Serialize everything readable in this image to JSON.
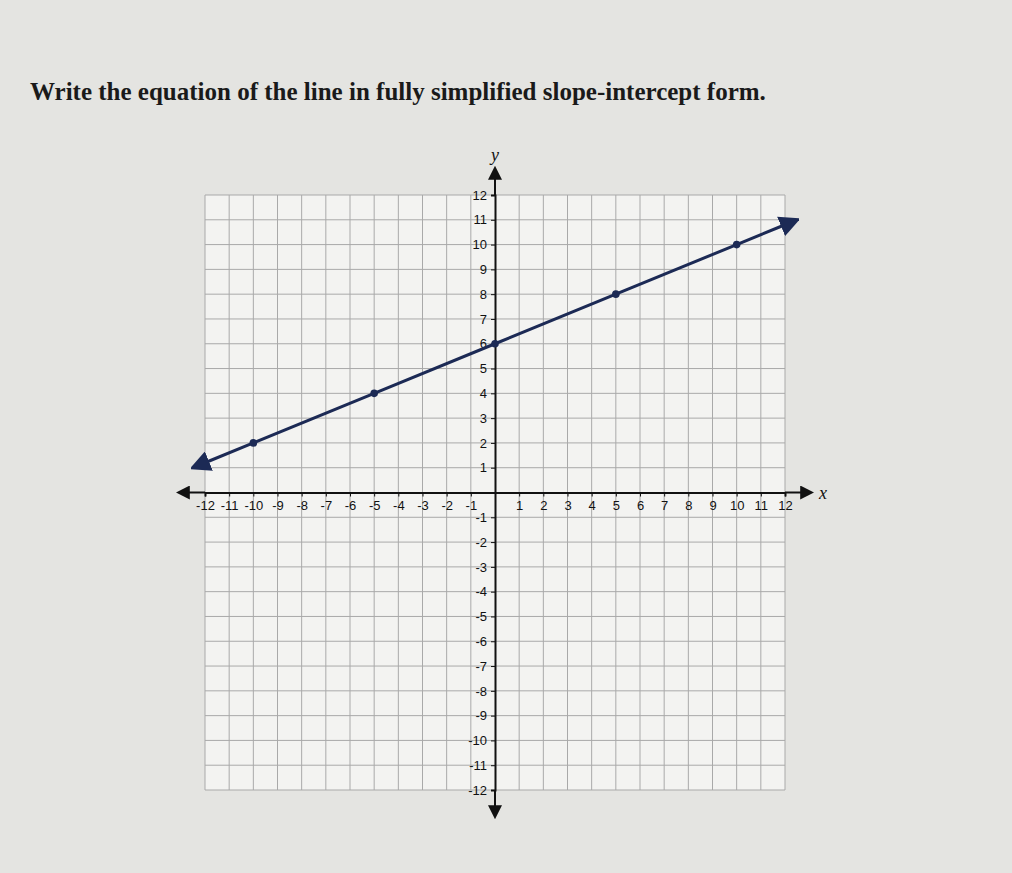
{
  "chart_data": {
    "type": "line",
    "title": "Write the equation of the line in fully simplified slope-intercept form.",
    "x_label": "x",
    "y_label": "y",
    "x": [
      -12,
      -10,
      -5,
      0,
      5,
      10,
      12
    ],
    "series": [
      {
        "type": "line",
        "color": "#1c2a55",
        "line_style": "solid",
        "marker": "none",
        "values": [
          1.2,
          2,
          4,
          6,
          8,
          10,
          10.8
        ]
      },
      {
        "type": "scatter",
        "color": "#1c2a55",
        "marker": "circle",
        "values": [
          null,
          2,
          4,
          6,
          8,
          10,
          null
        ]
      }
    ],
    "xlim": [
      -12,
      12
    ],
    "ylim": [
      -12,
      12
    ],
    "xticks": [
      -12,
      -11,
      -10,
      -9,
      -8,
      -7,
      -6,
      -5,
      -4,
      -3,
      -2,
      -1,
      1,
      2,
      3,
      4,
      5,
      6,
      7,
      8,
      9,
      10,
      11,
      12
    ],
    "yticks": [
      -12,
      -11,
      -10,
      -9,
      -8,
      -7,
      -6,
      -5,
      -4,
      -3,
      -2,
      -1,
      1,
      2,
      3,
      4,
      5,
      6,
      7,
      8,
      9,
      10,
      11,
      12
    ],
    "grid": true
  }
}
